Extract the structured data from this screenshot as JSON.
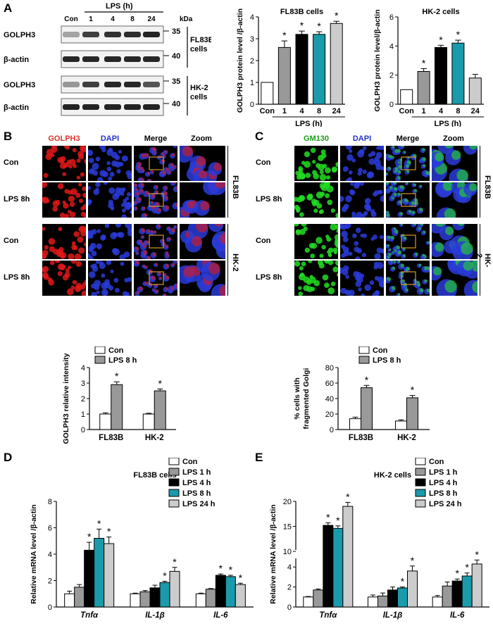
{
  "panels": {
    "A": "A",
    "B": "B",
    "C": "C",
    "D": "D",
    "E": "E"
  },
  "blot": {
    "lanes": [
      "Con",
      "1",
      "4",
      "8",
      "24"
    ],
    "lps_label": "LPS (h)",
    "kda": "kDa",
    "rows": [
      {
        "label": "GOLPH3",
        "kda": "35",
        "intensity": [
          0.35,
          0.8,
          0.85,
          0.88,
          0.92
        ]
      },
      {
        "label": "β-actin",
        "kda": "40",
        "intensity": [
          0.9,
          0.9,
          0.9,
          0.9,
          0.9
        ]
      },
      {
        "label": "GOLPH3",
        "kda": "35",
        "intensity": [
          0.4,
          0.8,
          0.9,
          0.9,
          0.7
        ]
      },
      {
        "label": "β-actin",
        "kda": "40",
        "intensity": [
          0.92,
          0.92,
          0.92,
          0.92,
          0.92
        ]
      }
    ],
    "cell_labels": [
      [
        "FL83B",
        "cells"
      ],
      [
        "HK-2",
        "cells"
      ]
    ]
  },
  "micro": {
    "B": {
      "headers": [
        "GOLPH3",
        "DAPI",
        "Merge",
        "Zoom"
      ],
      "header_colors": [
        "#e0302a",
        "#2233cc",
        "#000000",
        "#000000"
      ],
      "rows": [
        "Con",
        "LPS 8h",
        "Con",
        "LPS 8h"
      ],
      "cell_lines": [
        "FL83B",
        "HK-2"
      ],
      "stain_color": "#e01818"
    },
    "C": {
      "headers": [
        "GM130",
        "DAPI",
        "Merge",
        "Zoom"
      ],
      "header_colors": [
        "#18a018",
        "#2233cc",
        "#000000",
        "#000000"
      ],
      "rows": [
        "Con",
        "LPS 8h",
        "Con",
        "LPS 8h"
      ],
      "cell_lines": [
        "FL83B",
        "HK-2"
      ],
      "stain_color": "#22dd22"
    }
  },
  "chart_data": [
    {
      "id": "A1",
      "type": "bar",
      "title": "FL83B cells",
      "categories": [
        "Con",
        "1",
        "4",
        "8",
        "24"
      ],
      "values": [
        1.0,
        2.6,
        3.2,
        3.2,
        3.7
      ],
      "errors": [
        0,
        0.3,
        0.15,
        0.12,
        0.1
      ],
      "colors": [
        "#ffffff",
        "#999999",
        "#000000",
        "#1a9aaa",
        "#cccccc"
      ],
      "significance": [
        "",
        "*",
        "*",
        "*",
        "*"
      ],
      "ylabel": "GOLPH3 protein level /β-actin",
      "xlabel": "LPS (h)",
      "ylim": [
        0,
        4
      ],
      "yticks": [
        0,
        1,
        2,
        3,
        4
      ]
    },
    {
      "id": "A2",
      "type": "bar",
      "title": "HK-2 cells",
      "categories": [
        "Con",
        "1",
        "4",
        "8",
        "24"
      ],
      "values": [
        1.0,
        2.25,
        3.9,
        4.2,
        1.8
      ],
      "errors": [
        0,
        0.2,
        0.15,
        0.2,
        0.25
      ],
      "colors": [
        "#ffffff",
        "#999999",
        "#000000",
        "#1a9aaa",
        "#cccccc"
      ],
      "significance": [
        "",
        "*",
        "*",
        "*",
        ""
      ],
      "ylabel": "GOLPH3 protein level/β-actin",
      "xlabel": "LPS (h)",
      "ylim": [
        0,
        6
      ],
      "yticks": [
        0,
        2,
        4,
        6
      ]
    },
    {
      "id": "B",
      "type": "bar",
      "categories": [
        "FL83B",
        "HK-2"
      ],
      "series": [
        {
          "name": "Con",
          "values": [
            1.0,
            1.0
          ],
          "errors": [
            0.08,
            0.05
          ],
          "color": "#ffffff"
        },
        {
          "name": "LPS 8 h",
          "values": [
            2.9,
            2.5
          ],
          "errors": [
            0.18,
            0.12
          ],
          "color": "#999999"
        }
      ],
      "significance": [
        [
          "",
          ""
        ],
        [
          "*",
          "*"
        ]
      ],
      "ylabel": "GOLPH3 relative intensity",
      "ylim": [
        0,
        4
      ],
      "yticks": [
        0,
        1,
        2,
        3,
        4
      ]
    },
    {
      "id": "C",
      "type": "bar",
      "categories": [
        "FL83B",
        "HK-2"
      ],
      "series": [
        {
          "name": "Con",
          "values": [
            14,
            11
          ],
          "errors": [
            2,
            1.5
          ],
          "color": "#ffffff"
        },
        {
          "name": "LPS 8 h",
          "values": [
            54,
            41
          ],
          "errors": [
            3,
            3
          ],
          "color": "#999999"
        }
      ],
      "significance": [
        [
          "",
          ""
        ],
        [
          "*",
          "*"
        ]
      ],
      "ylabel": "% cells with fragmented Golgi",
      "ylim": [
        0,
        80
      ],
      "yticks": [
        0,
        20,
        40,
        60,
        80
      ]
    },
    {
      "id": "D",
      "type": "bar",
      "title": "FL83B cells",
      "categories": [
        "Tnfα",
        "IL-1β",
        "IL-6"
      ],
      "series": [
        {
          "name": "Con",
          "values": [
            1.0,
            1.0,
            1.0
          ],
          "errors": [
            0.2,
            0.05,
            0.05
          ],
          "color": "#ffffff"
        },
        {
          "name": "LPS 1 h",
          "values": [
            1.5,
            1.15,
            1.35
          ],
          "errors": [
            0.2,
            0.1,
            0.05
          ],
          "color": "#999999"
        },
        {
          "name": "LPS 4 h",
          "values": [
            4.3,
            1.45,
            2.4
          ],
          "errors": [
            0.6,
            0.2,
            0.1
          ],
          "color": "#000000"
        },
        {
          "name": "LPS 8 h",
          "values": [
            5.2,
            1.85,
            2.3
          ],
          "errors": [
            0.7,
            0.1,
            0.1
          ],
          "color": "#1a9aaa"
        },
        {
          "name": "LPS 24 h",
          "values": [
            4.8,
            2.7,
            1.7
          ],
          "errors": [
            0.5,
            0.3,
            0.1
          ],
          "color": "#cccccc"
        }
      ],
      "significance": [
        [
          "",
          "",
          ""
        ],
        [
          "",
          "",
          ""
        ],
        [
          "*",
          "",
          "*"
        ],
        [
          "*",
          "*",
          "*"
        ],
        [
          "*",
          "*",
          "*"
        ]
      ],
      "ylabel": "Relative mRNA level /β-actin",
      "ylim": [
        0,
        8
      ],
      "yticks": [
        0,
        2,
        4,
        6,
        8
      ]
    },
    {
      "id": "E",
      "type": "bar",
      "title": "HK-2 cells",
      "categories": [
        "Tnfα",
        "IL-1β",
        "IL-6"
      ],
      "series": [
        {
          "name": "Con",
          "values": [
            1.0,
            1.0,
            1.0
          ],
          "errors": [
            0.05,
            0.2,
            0.15
          ],
          "color": "#ffffff"
        },
        {
          "name": "LPS 1 h",
          "values": [
            1.7,
            1.1,
            2.1
          ],
          "errors": [
            0.1,
            0.3,
            0.4
          ],
          "color": "#999999"
        },
        {
          "name": "LPS 4 h",
          "values": [
            15.2,
            1.7,
            2.6
          ],
          "errors": [
            0.5,
            0.3,
            0.2
          ],
          "color": "#000000"
        },
        {
          "name": "LPS 8 h",
          "values": [
            14.6,
            1.9,
            3.1
          ],
          "errors": [
            0.5,
            0.1,
            0.3
          ],
          "color": "#1a9aaa"
        },
        {
          "name": "LPS 24 h",
          "values": [
            19.0,
            3.6,
            4.3
          ],
          "errors": [
            0.8,
            0.5,
            0.4
          ],
          "color": "#cccccc"
        }
      ],
      "significance": [
        [
          "",
          "",
          ""
        ],
        [
          "",
          "",
          ""
        ],
        [
          "*",
          "",
          "*"
        ],
        [
          "*",
          "*",
          "*"
        ],
        [
          "*",
          "*",
          "*"
        ]
      ],
      "ylabel": "Relative mRNA level /β-actin",
      "ylim": [
        0,
        20
      ],
      "yticks": [
        0,
        2,
        4,
        10,
        15,
        20
      ],
      "axis_break": [
        5,
        10
      ]
    }
  ]
}
